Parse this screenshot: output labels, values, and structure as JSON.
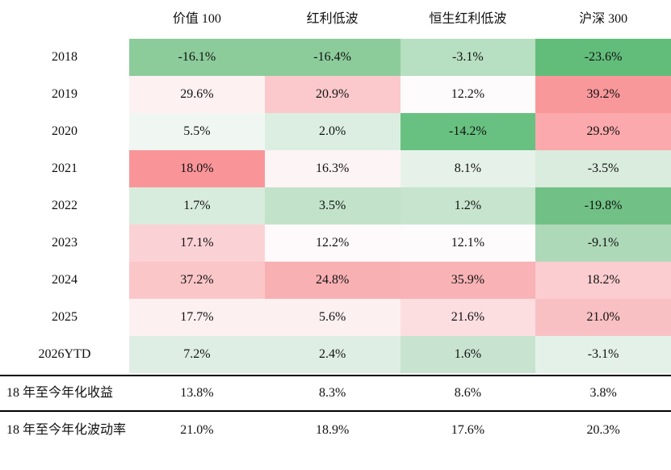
{
  "chart_data": {
    "type": "heatmap",
    "title": "",
    "legend_position": "none",
    "columns": [
      "价值 100",
      "红利低波",
      "恒生红利低波",
      "沪深 300"
    ],
    "rows": [
      {
        "label": "2018",
        "values": [
          "-16.1%",
          "-16.4%",
          "-3.1%",
          "-23.6%"
        ],
        "colors": [
          "#8ccc9b",
          "#8ccc9b",
          "#b7dfc1",
          "#62bd7b"
        ]
      },
      {
        "label": "2019",
        "values": [
          "29.6%",
          "20.9%",
          "12.2%",
          "39.2%"
        ],
        "colors": [
          "#fdf1f2",
          "#fbc9cc",
          "#fefbfc",
          "#f9989b"
        ]
      },
      {
        "label": "2020",
        "values": [
          "5.5%",
          "2.0%",
          "-14.2%",
          "29.9%"
        ],
        "colors": [
          "#f0f7f2",
          "#dbeee1",
          "#68c181",
          "#fba9ac"
        ]
      },
      {
        "label": "2021",
        "values": [
          "18.0%",
          "16.3%",
          "8.1%",
          "-3.5%"
        ],
        "colors": [
          "#f99599",
          "#fdf4f5",
          "#e6f2e9",
          "#d9ecdd"
        ]
      },
      {
        "label": "2022",
        "values": [
          "1.7%",
          "3.5%",
          "1.2%",
          "-19.8%"
        ],
        "colors": [
          "#d8ecdd",
          "#c2e2ca",
          "#c7e4ce",
          "#71c186"
        ]
      },
      {
        "label": "2023",
        "values": [
          "17.1%",
          "12.2%",
          "12.1%",
          "-9.1%"
        ],
        "colors": [
          "#fad2d5",
          "#fefafb",
          "#fefbfc",
          "#aed9b8"
        ]
      },
      {
        "label": "2024",
        "values": [
          "37.2%",
          "24.8%",
          "35.9%",
          "18.2%"
        ],
        "colors": [
          "#fbc6c8",
          "#f9b0b3",
          "#f9b2b5",
          "#fbcdd0"
        ]
      },
      {
        "label": "2025",
        "values": [
          "17.7%",
          "5.6%",
          "21.6%",
          "21.0%"
        ],
        "colors": [
          "#fdf0f1",
          "#fdf0f1",
          "#fcdee1",
          "#f9c0c3"
        ]
      },
      {
        "label": "2026YTD",
        "values": [
          "7.2%",
          "2.4%",
          "1.6%",
          "-3.1%"
        ],
        "colors": [
          "#dfeee4",
          "#dfeee4",
          "#c8e3cf",
          "#e4f1e8"
        ]
      }
    ],
    "summary_rows": [
      {
        "label": "18 年至今年化收益",
        "values": [
          "13.8%",
          "8.3%",
          "8.6%",
          "3.8%"
        ]
      },
      {
        "label": "18 年至今年化波动率",
        "values": [
          "21.0%",
          "18.9%",
          "17.6%",
          "20.3%"
        ]
      }
    ],
    "style_colors": {
      "text": "#111111",
      "divider": "#000000",
      "background": "#ffffff"
    }
  }
}
